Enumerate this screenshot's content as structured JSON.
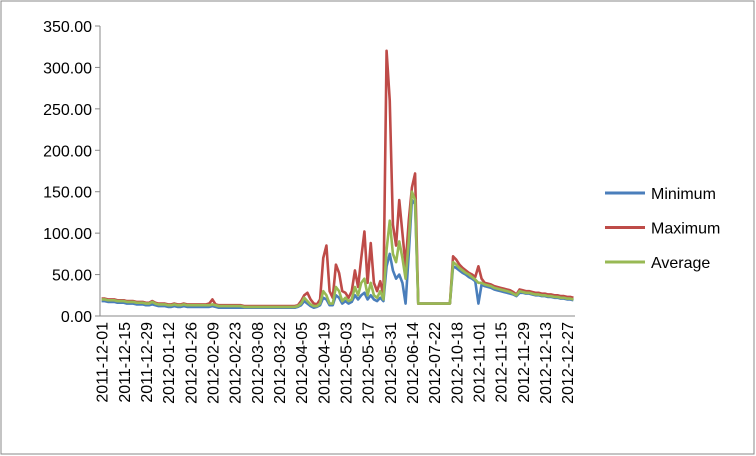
{
  "chart_data": {
    "type": "line",
    "categories": [
      "2011-12-01",
      null,
      null,
      null,
      null,
      null,
      null,
      "2011-12-15",
      null,
      null,
      null,
      null,
      null,
      null,
      "2011-12-29",
      null,
      null,
      null,
      null,
      null,
      null,
      "2012-01-12",
      null,
      null,
      null,
      null,
      null,
      null,
      "2012-01-26",
      null,
      null,
      null,
      null,
      null,
      null,
      "2012-02-09",
      null,
      null,
      null,
      null,
      null,
      null,
      "2012-02-23",
      null,
      null,
      null,
      null,
      null,
      null,
      "2012-03-08",
      null,
      null,
      null,
      null,
      null,
      null,
      "2012-03-22",
      null,
      null,
      null,
      null,
      null,
      null,
      "2012-04-05",
      null,
      null,
      null,
      null,
      null,
      null,
      "2012-04-19",
      null,
      null,
      null,
      null,
      null,
      null,
      "2012-05-03",
      null,
      null,
      null,
      null,
      null,
      null,
      "2012-05-17",
      null,
      null,
      null,
      null,
      null,
      null,
      "2012-05-31",
      null,
      null,
      null,
      null,
      null,
      null,
      "2012-06-14",
      null,
      null,
      null,
      null,
      null,
      null,
      "2012-07-22",
      null,
      null,
      null,
      null,
      null,
      null,
      "2012-10-18",
      null,
      null,
      null,
      null,
      null,
      null,
      "2012-11-01",
      null,
      null,
      null,
      null,
      null,
      null,
      "2012-11-15",
      null,
      null,
      null,
      null,
      null,
      null,
      "2012-11-29",
      null,
      null,
      null,
      null,
      null,
      null,
      "2012-12-13",
      null,
      null,
      null,
      null,
      null,
      null,
      "2012-12-27",
      null,
      null
    ],
    "series": [
      {
        "name": "Minimum",
        "color": "#4a7ebb",
        "values": [
          18,
          18,
          17,
          17,
          17,
          16,
          16,
          16,
          15,
          15,
          15,
          14,
          14,
          14,
          13,
          13,
          14,
          13,
          12,
          12,
          12,
          11,
          11,
          12,
          11,
          11,
          12,
          11,
          11,
          11,
          11,
          11,
          11,
          11,
          11,
          12,
          11,
          10,
          10,
          10,
          10,
          10,
          10,
          10,
          10,
          10,
          10,
          10,
          10,
          10,
          10,
          10,
          10,
          10,
          10,
          10,
          10,
          10,
          10,
          10,
          10,
          10,
          11,
          13,
          18,
          15,
          12,
          10,
          11,
          13,
          22,
          20,
          13,
          13,
          25,
          22,
          15,
          18,
          15,
          17,
          25,
          20,
          25,
          28,
          20,
          25,
          20,
          18,
          22,
          18,
          60,
          75,
          55,
          45,
          50,
          40,
          15,
          75,
          140,
          135,
          15,
          15,
          15,
          15,
          15,
          15,
          15,
          15,
          15,
          15,
          15,
          60,
          58,
          55,
          52,
          50,
          47,
          45,
          42,
          15,
          38,
          36,
          35,
          34,
          32,
          31,
          30,
          29,
          28,
          27,
          26,
          24,
          28,
          28,
          27,
          27,
          26,
          25,
          25,
          24,
          24,
          23,
          23,
          22,
          22,
          21,
          21,
          20,
          20,
          19
        ]
      },
      {
        "name": "Maximum",
        "color": "#be4b48",
        "values": [
          21,
          21,
          20,
          20,
          20,
          19,
          19,
          19,
          18,
          18,
          18,
          17,
          17,
          17,
          16,
          16,
          18,
          16,
          15,
          15,
          15,
          14,
          14,
          15,
          14,
          14,
          15,
          14,
          14,
          14,
          14,
          14,
          14,
          14,
          15,
          20,
          14,
          13,
          13,
          13,
          13,
          13,
          13,
          13,
          13,
          12,
          12,
          12,
          12,
          12,
          12,
          12,
          12,
          12,
          12,
          12,
          12,
          12,
          12,
          12,
          12,
          12,
          13,
          18,
          25,
          28,
          20,
          15,
          14,
          20,
          70,
          85,
          30,
          22,
          62,
          52,
          30,
          28,
          22,
          30,
          55,
          35,
          70,
          102,
          40,
          88,
          40,
          30,
          42,
          25,
          320,
          260,
          110,
          85,
          140,
          100,
          60,
          115,
          155,
          172,
          15,
          15,
          15,
          15,
          15,
          15,
          15,
          15,
          15,
          15,
          15,
          72,
          68,
          62,
          58,
          55,
          52,
          50,
          47,
          60,
          45,
          40,
          39,
          38,
          36,
          35,
          34,
          33,
          32,
          31,
          29,
          26,
          32,
          31,
          30,
          30,
          29,
          28,
          28,
          27,
          27,
          26,
          26,
          25,
          25,
          24,
          24,
          23,
          23,
          22
        ]
      },
      {
        "name": "Average",
        "color": "#98b954",
        "values": [
          20,
          20,
          19,
          19,
          19,
          18,
          18,
          18,
          17,
          17,
          17,
          16,
          16,
          16,
          15,
          15,
          17,
          15,
          14,
          14,
          14,
          13,
          13,
          14,
          13,
          13,
          14,
          13,
          13,
          13,
          13,
          13,
          13,
          13,
          13,
          14,
          13,
          12,
          12,
          12,
          12,
          12,
          12,
          12,
          12,
          11,
          11,
          11,
          11,
          11,
          11,
          11,
          11,
          11,
          11,
          11,
          11,
          11,
          11,
          11,
          11,
          11,
          12,
          15,
          22,
          18,
          14,
          12,
          12,
          15,
          30,
          25,
          15,
          15,
          35,
          30,
          18,
          22,
          18,
          20,
          35,
          25,
          40,
          45,
          25,
          40,
          25,
          22,
          30,
          20,
          80,
          115,
          75,
          65,
          90,
          70,
          45,
          90,
          150,
          140,
          15,
          15,
          15,
          15,
          15,
          15,
          15,
          15,
          15,
          15,
          15,
          65,
          62,
          58,
          55,
          52,
          50,
          47,
          44,
          40,
          40,
          38,
          37,
          36,
          34,
          33,
          32,
          31,
          30,
          29,
          27,
          25,
          30,
          29,
          28,
          28,
          27,
          26,
          26,
          25,
          25,
          24,
          24,
          23,
          23,
          22,
          22,
          21,
          21,
          20
        ]
      }
    ],
    "ylim": [
      0,
      350
    ],
    "yticks": [
      {
        "value": 0,
        "label": "0.00"
      },
      {
        "value": 50,
        "label": "50.00"
      },
      {
        "value": 100,
        "label": "100.00"
      },
      {
        "value": 150,
        "label": "150.00"
      },
      {
        "value": 200,
        "label": "200.00"
      },
      {
        "value": 250,
        "label": "250.00"
      },
      {
        "value": 300,
        "label": "300.00"
      },
      {
        "value": 350,
        "label": "350.00"
      }
    ],
    "grid": false,
    "legend": "right"
  }
}
